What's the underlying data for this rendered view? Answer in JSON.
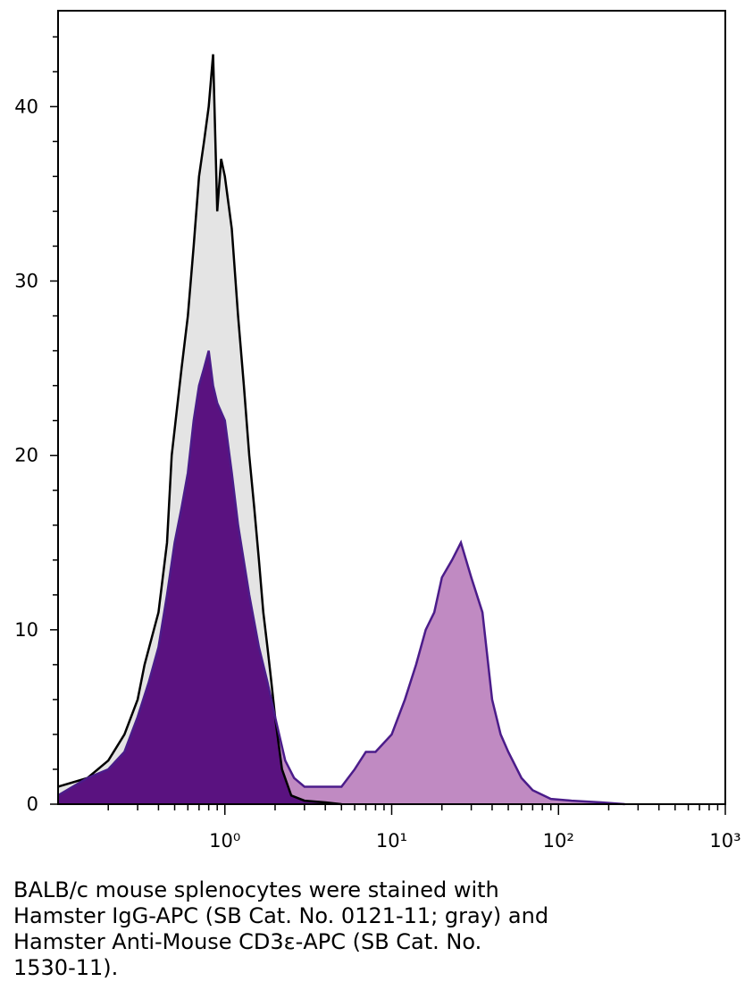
{
  "chart_data": {
    "type": "histogram-overlay",
    "xscale": "log",
    "xlim": [
      0.1,
      1000
    ],
    "ylim": [
      0,
      45.5
    ],
    "xticks": [
      {
        "value": 1,
        "label": "10⁰"
      },
      {
        "value": 10,
        "label": "10¹"
      },
      {
        "value": 100,
        "label": "10²"
      },
      {
        "value": 1000,
        "label": "10³"
      }
    ],
    "xminorticks": [
      0.2,
      0.3,
      0.4,
      0.5,
      0.6,
      0.7,
      0.8,
      0.9,
      2,
      3,
      4,
      5,
      6,
      7,
      8,
      9,
      20,
      30,
      40,
      50,
      60,
      70,
      80,
      90,
      200,
      300,
      400,
      500,
      600,
      700,
      800,
      900
    ],
    "yticks": [
      0,
      10,
      20,
      30,
      40
    ],
    "yminorticks": [
      2,
      4,
      6,
      8,
      12,
      14,
      16,
      18,
      22,
      24,
      26,
      28,
      32,
      34,
      36,
      38,
      42,
      44
    ],
    "overlap_color": "#5a1280",
    "series": [
      {
        "name": "gray",
        "color": "#e4e4e4",
        "line_color": "#000000",
        "x": [
          0.1,
          0.15,
          0.2,
          0.25,
          0.3,
          0.33,
          0.4,
          0.45,
          0.48,
          0.55,
          0.6,
          0.65,
          0.7,
          0.75,
          0.8,
          0.85,
          0.9,
          0.95,
          1.0,
          1.1,
          1.2,
          1.3,
          1.4,
          1.5,
          1.6,
          1.7,
          1.8,
          1.9,
          2.0,
          2.2,
          2.5,
          3,
          4,
          5
        ],
        "values": [
          1,
          1.5,
          2.5,
          4,
          6,
          8,
          11,
          15,
          20,
          25,
          28,
          32,
          36,
          38,
          40,
          43,
          34,
          37,
          36,
          33,
          28,
          24,
          20,
          17,
          14,
          11,
          9,
          7,
          5,
          2,
          0.5,
          0.2,
          0.1,
          0
        ]
      },
      {
        "name": "CD3",
        "color": "#c08ac2",
        "line_color": "#4b1c8a",
        "x": [
          0.1,
          0.15,
          0.2,
          0.25,
          0.3,
          0.35,
          0.4,
          0.45,
          0.5,
          0.55,
          0.6,
          0.65,
          0.7,
          0.75,
          0.8,
          0.85,
          0.9,
          1.0,
          1.1,
          1.2,
          1.4,
          1.6,
          1.8,
          2.0,
          2.3,
          2.6,
          3,
          4,
          5,
          6,
          7,
          8,
          10,
          12,
          14,
          16,
          18,
          20,
          23,
          26,
          30,
          35,
          40,
          45,
          50,
          60,
          70,
          90,
          120,
          180,
          250
        ],
        "values": [
          0.5,
          1.5,
          2,
          3,
          5,
          7,
          9,
          12,
          15,
          17,
          19,
          22,
          24,
          25,
          26,
          24,
          23,
          22,
          19,
          16,
          12,
          9,
          7,
          5,
          2.5,
          1.5,
          1,
          1,
          1,
          2,
          3,
          3,
          4,
          6,
          8,
          10,
          11,
          13,
          14,
          15,
          13,
          11,
          6,
          4,
          3,
          1.5,
          0.8,
          0.3,
          0.2,
          0.1,
          0
        ]
      }
    ],
    "caption_lines": [
      "BALB/c mouse splenocytes were stained with",
      "Hamster IgG-APC (SB Cat. No. 0121-11; gray) and",
      "Hamster Anti-Mouse CD3ε-APC (SB Cat. No.",
      "1530-11)."
    ]
  }
}
